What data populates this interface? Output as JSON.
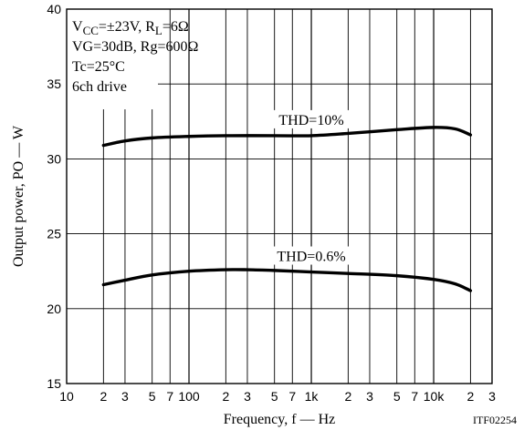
{
  "chart_data": {
    "type": "line",
    "title": "",
    "xlabel": "Frequency, f — Hz",
    "ylabel": "Output power, PO — W",
    "figure_id": "ITF02254",
    "xscale": "log",
    "xlim": [
      10,
      30000
    ],
    "ylim": [
      15,
      40
    ],
    "grid": true,
    "y_ticks": [
      {
        "value": 15,
        "label": "15"
      },
      {
        "value": 20,
        "label": "20"
      },
      {
        "value": 25,
        "label": "25"
      },
      {
        "value": 30,
        "label": "30"
      },
      {
        "value": 35,
        "label": "35"
      },
      {
        "value": 40,
        "label": "40"
      }
    ],
    "x_ticks": [
      {
        "value": 10,
        "label": "10",
        "major": true
      },
      {
        "value": 20,
        "label": "2",
        "major": false
      },
      {
        "value": 30,
        "label": "3",
        "major": false
      },
      {
        "value": 50,
        "label": "5",
        "major": false
      },
      {
        "value": 70,
        "label": "7",
        "major": false
      },
      {
        "value": 100,
        "label": "100",
        "major": true
      },
      {
        "value": 200,
        "label": "2",
        "major": false
      },
      {
        "value": 300,
        "label": "3",
        "major": false
      },
      {
        "value": 500,
        "label": "5",
        "major": false
      },
      {
        "value": 700,
        "label": "7",
        "major": false
      },
      {
        "value": 1000,
        "label": "1k",
        "major": true
      },
      {
        "value": 2000,
        "label": "2",
        "major": false
      },
      {
        "value": 3000,
        "label": "3",
        "major": false
      },
      {
        "value": 5000,
        "label": "5",
        "major": false
      },
      {
        "value": 7000,
        "label": "7",
        "major": false
      },
      {
        "value": 10000,
        "label": "10k",
        "major": true
      },
      {
        "value": 20000,
        "label": "2",
        "major": false
      },
      {
        "value": 30000,
        "label": "3",
        "major": false
      }
    ],
    "conditions": [
      {
        "parts": [
          [
            "V",
            false
          ],
          [
            "CC",
            true
          ],
          [
            "=±23V, R",
            false
          ],
          [
            "L",
            true
          ],
          [
            "=6Ω",
            false
          ]
        ]
      },
      {
        "parts": [
          [
            "VG=30dB, Rg=600Ω",
            false
          ]
        ]
      },
      {
        "parts": [
          [
            "Tc=25°C",
            false
          ]
        ]
      },
      {
        "parts": [
          [
            "6ch drive",
            false
          ]
        ]
      }
    ],
    "series": [
      {
        "name": "THD=10%",
        "points": [
          [
            20,
            30.9
          ],
          [
            30,
            31.2
          ],
          [
            50,
            31.4
          ],
          [
            100,
            31.5
          ],
          [
            200,
            31.55
          ],
          [
            500,
            31.55
          ],
          [
            1000,
            31.55
          ],
          [
            2000,
            31.7
          ],
          [
            5000,
            31.95
          ],
          [
            10000,
            32.1
          ],
          [
            15000,
            32.0
          ],
          [
            20000,
            31.6
          ]
        ]
      },
      {
        "name": "THD=0.6%",
        "points": [
          [
            20,
            21.6
          ],
          [
            30,
            21.9
          ],
          [
            50,
            22.25
          ],
          [
            100,
            22.5
          ],
          [
            200,
            22.6
          ],
          [
            300,
            22.6
          ],
          [
            500,
            22.55
          ],
          [
            1000,
            22.45
          ],
          [
            2000,
            22.35
          ],
          [
            5000,
            22.2
          ],
          [
            10000,
            21.95
          ],
          [
            15000,
            21.65
          ],
          [
            20000,
            21.2
          ]
        ]
      }
    ]
  }
}
